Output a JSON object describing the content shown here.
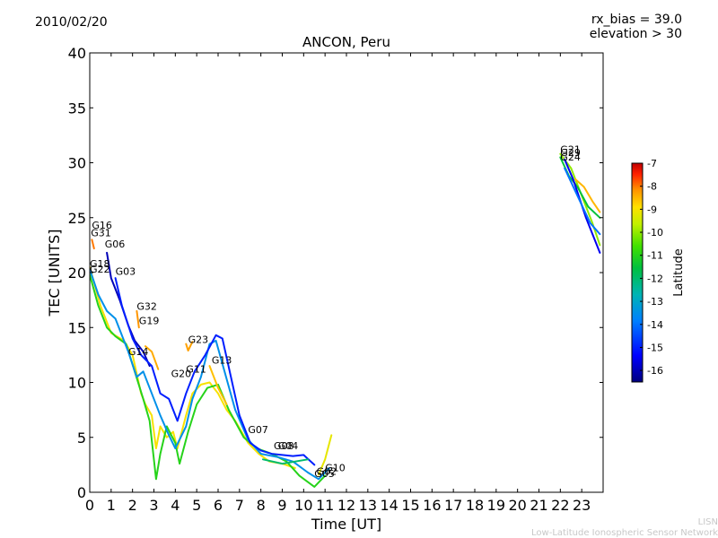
{
  "header": {
    "date": "2010/02/20",
    "rx_bias": "rx_bias = 39.0",
    "elevation": "elevation > 30"
  },
  "footer": {
    "line1": "LISN",
    "line2": "Low-Latitude Ionospheric Sensor Network"
  },
  "chart_data": {
    "type": "line",
    "title": "ANCON, Peru",
    "xlabel": "Time [UT]",
    "ylabel": "TEC [UNITS]",
    "xlim": [
      0,
      24
    ],
    "ylim": [
      0,
      40
    ],
    "xticks": [
      "0",
      "1",
      "2",
      "3",
      "4",
      "5",
      "6",
      "7",
      "8",
      "9",
      "10",
      "11",
      "12",
      "13",
      "14",
      "15",
      "16",
      "17",
      "18",
      "19",
      "20",
      "21",
      "22",
      "23"
    ],
    "yticks": [
      "0",
      "5",
      "10",
      "15",
      "20",
      "25",
      "30",
      "35",
      "40"
    ],
    "grid": false,
    "colorbar": {
      "label": "Latitude",
      "range": [
        -16.5,
        -7
      ],
      "ticks": [
        "-7",
        "-8",
        "-9",
        "-10",
        "-11",
        "-12",
        "-13",
        "-14",
        "-15",
        "-16"
      ]
    },
    "labels": [
      {
        "text": "G16",
        "x": 0.1,
        "y": 24.0
      },
      {
        "text": "G31",
        "x": 0.05,
        "y": 23.3
      },
      {
        "text": "G06",
        "x": 0.7,
        "y": 22.3
      },
      {
        "text": "G18",
        "x": 0.0,
        "y": 20.5
      },
      {
        "text": "G22",
        "x": 0.0,
        "y": 20.0
      },
      {
        "text": "G03",
        "x": 1.2,
        "y": 19.8
      },
      {
        "text": "G32",
        "x": 2.2,
        "y": 16.6
      },
      {
        "text": "G19",
        "x": 2.3,
        "y": 15.3
      },
      {
        "text": "G14",
        "x": 1.8,
        "y": 12.5
      },
      {
        "text": "G23",
        "x": 4.6,
        "y": 13.6
      },
      {
        "text": "G13",
        "x": 5.7,
        "y": 11.7
      },
      {
        "text": "G11",
        "x": 4.5,
        "y": 10.9
      },
      {
        "text": "G20",
        "x": 3.8,
        "y": 10.5
      },
      {
        "text": "G07",
        "x": 7.4,
        "y": 5.4
      },
      {
        "text": "G08",
        "x": 8.6,
        "y": 3.9
      },
      {
        "text": "G04",
        "x": 8.8,
        "y": 3.9
      },
      {
        "text": "G10",
        "x": 11.0,
        "y": 1.9
      },
      {
        "text": "G02",
        "x": 10.6,
        "y": 1.6
      },
      {
        "text": "G05",
        "x": 10.5,
        "y": 1.4
      },
      {
        "text": "G21",
        "x": 22.0,
        "y": 30.9
      },
      {
        "text": "G29",
        "x": 22.0,
        "y": 30.6
      },
      {
        "text": "G24",
        "x": 22.0,
        "y": 30.2
      }
    ],
    "series": [
      {
        "lat": -9.0,
        "points": [
          [
            0,
            20.5
          ],
          [
            0.5,
            17
          ],
          [
            1,
            14.5
          ],
          [
            1.6,
            13.8
          ],
          [
            2,
            12.5
          ],
          [
            2.4,
            9
          ],
          [
            2.6,
            8
          ],
          [
            2.9,
            7
          ],
          [
            3.1,
            4
          ],
          [
            3.3,
            6
          ],
          [
            3.6,
            5
          ],
          [
            3.9,
            5.5
          ],
          [
            4.1,
            4
          ],
          [
            4.5,
            7
          ],
          [
            4.8,
            9
          ],
          [
            5.2,
            9.8
          ],
          [
            5.6,
            10
          ],
          [
            6,
            9
          ],
          [
            6.4,
            7.5
          ],
          [
            6.8,
            6.5
          ],
          [
            7.4,
            4.5
          ],
          [
            7.9,
            3.5
          ],
          [
            8.4,
            2.8
          ],
          [
            9,
            2.6
          ],
          [
            9.6,
            2.2
          ]
        ]
      },
      {
        "lat": -11.0,
        "points": [
          [
            0,
            19.8
          ],
          [
            0.4,
            17
          ],
          [
            0.8,
            15
          ],
          [
            1.2,
            14.2
          ],
          [
            1.7,
            13.5
          ],
          [
            2.1,
            11
          ],
          [
            2.5,
            8.5
          ],
          [
            2.8,
            6.5
          ],
          [
            3.1,
            1.2
          ],
          [
            3.3,
            3.5
          ],
          [
            3.6,
            6
          ],
          [
            4,
            4.5
          ],
          [
            4.2,
            2.6
          ],
          [
            4.6,
            5.5
          ],
          [
            5,
            8
          ],
          [
            5.5,
            9.5
          ],
          [
            6,
            9.8
          ],
          [
            6.5,
            7.5
          ],
          [
            7.2,
            5
          ],
          [
            7.8,
            4
          ],
          [
            8.5,
            3.5
          ],
          [
            9.2,
            2.8
          ],
          [
            9.8,
            1.5
          ],
          [
            10.5,
            0.5
          ],
          [
            11,
            1.5
          ]
        ]
      },
      {
        "lat": -13.5,
        "points": [
          [
            0,
            20.3
          ],
          [
            0.4,
            18
          ],
          [
            0.8,
            16.5
          ],
          [
            1.2,
            15.8
          ],
          [
            1.8,
            12.8
          ],
          [
            2.2,
            10.5
          ],
          [
            2.5,
            11
          ],
          [
            2.9,
            9
          ],
          [
            3.3,
            7
          ],
          [
            3.7,
            5.2
          ],
          [
            4,
            4
          ],
          [
            4.5,
            6
          ],
          [
            4.8,
            8.5
          ],
          [
            5.2,
            10.5
          ],
          [
            5.6,
            13.5
          ],
          [
            5.9,
            13.8
          ],
          [
            6.3,
            11
          ],
          [
            6.8,
            7.5
          ],
          [
            7.4,
            4.8
          ],
          [
            8,
            3.5
          ],
          [
            8.8,
            3.2
          ],
          [
            9.5,
            2.8
          ],
          [
            10.2,
            1.8
          ],
          [
            10.7,
            1.2
          ],
          [
            11.2,
            2.2
          ]
        ]
      },
      {
        "lat": -16.0,
        "points": [
          [
            0.8,
            21.8
          ],
          [
            1,
            19.5
          ],
          [
            1.4,
            17.5
          ],
          [
            1.8,
            15.2
          ],
          [
            2.1,
            13.8
          ],
          [
            2.5,
            12.8
          ],
          [
            2.8,
            11.5
          ]
        ]
      },
      {
        "lat": -15.0,
        "points": [
          [
            1.2,
            19.5
          ],
          [
            1.5,
            17
          ],
          [
            2,
            14
          ],
          [
            2.4,
            12.5
          ],
          [
            2.9,
            11.5
          ],
          [
            3.3,
            9
          ],
          [
            3.7,
            8.5
          ],
          [
            4.1,
            6.5
          ],
          [
            4.5,
            9
          ],
          [
            4.9,
            11
          ],
          [
            5.4,
            12.5
          ],
          [
            5.9,
            14.3
          ],
          [
            6.2,
            14
          ],
          [
            6.6,
            10.5
          ],
          [
            7,
            7
          ],
          [
            7.5,
            4.5
          ],
          [
            8,
            3.8
          ],
          [
            8.5,
            3.5
          ],
          [
            9,
            3.4
          ],
          [
            9.5,
            3.3
          ],
          [
            10,
            3.4
          ],
          [
            10.5,
            2.5
          ]
        ]
      },
      {
        "lat": -8.0,
        "points": [
          [
            0.1,
            23
          ],
          [
            0.2,
            22.2
          ]
        ]
      },
      {
        "lat": -8.2,
        "points": [
          [
            2.2,
            16.5
          ],
          [
            2.3,
            15
          ]
        ]
      },
      {
        "lat": -8.3,
        "points": [
          [
            4.5,
            13.5
          ],
          [
            4.6,
            12.9
          ],
          [
            4.8,
            13.7
          ]
        ]
      },
      {
        "lat": -8.4,
        "points": [
          [
            2.6,
            13.3
          ],
          [
            2.9,
            12.8
          ],
          [
            3.2,
            11.2
          ]
        ]
      },
      {
        "lat": -8.6,
        "points": [
          [
            5.6,
            11.5
          ],
          [
            6,
            9.5
          ],
          [
            6.4,
            8
          ]
        ]
      },
      {
        "lat": -9.2,
        "points": [
          [
            11.3,
            5.2
          ],
          [
            11,
            3
          ],
          [
            10.7,
            1.6
          ]
        ]
      },
      {
        "lat": -12.0,
        "points": [
          [
            8.1,
            3
          ],
          [
            9,
            2.6
          ],
          [
            10.2,
            3
          ]
        ]
      },
      {
        "lat": -10.0,
        "points": [
          [
            22,
            30.8
          ],
          [
            22.5,
            29.5
          ],
          [
            23,
            27
          ],
          [
            23.5,
            24.5
          ],
          [
            23.85,
            22.5
          ]
        ]
      },
      {
        "lat": -11.5,
        "points": [
          [
            22,
            30.5
          ],
          [
            22.4,
            28.8
          ],
          [
            22.8,
            27.8
          ],
          [
            23.3,
            26
          ],
          [
            23.85,
            25
          ]
        ]
      },
      {
        "lat": -15.5,
        "points": [
          [
            22.2,
            30.3
          ],
          [
            22.6,
            28.5
          ],
          [
            23.2,
            25
          ],
          [
            23.85,
            21.8
          ]
        ]
      },
      {
        "lat": -14.0,
        "points": [
          [
            22.2,
            29.5
          ],
          [
            22.8,
            27
          ],
          [
            23.4,
            24.5
          ],
          [
            23.85,
            23.5
          ]
        ]
      },
      {
        "lat": -8.5,
        "points": [
          [
            22.7,
            28.5
          ],
          [
            23.1,
            27.8
          ],
          [
            23.5,
            26.5
          ],
          [
            23.85,
            25.5
          ]
        ]
      }
    ]
  }
}
